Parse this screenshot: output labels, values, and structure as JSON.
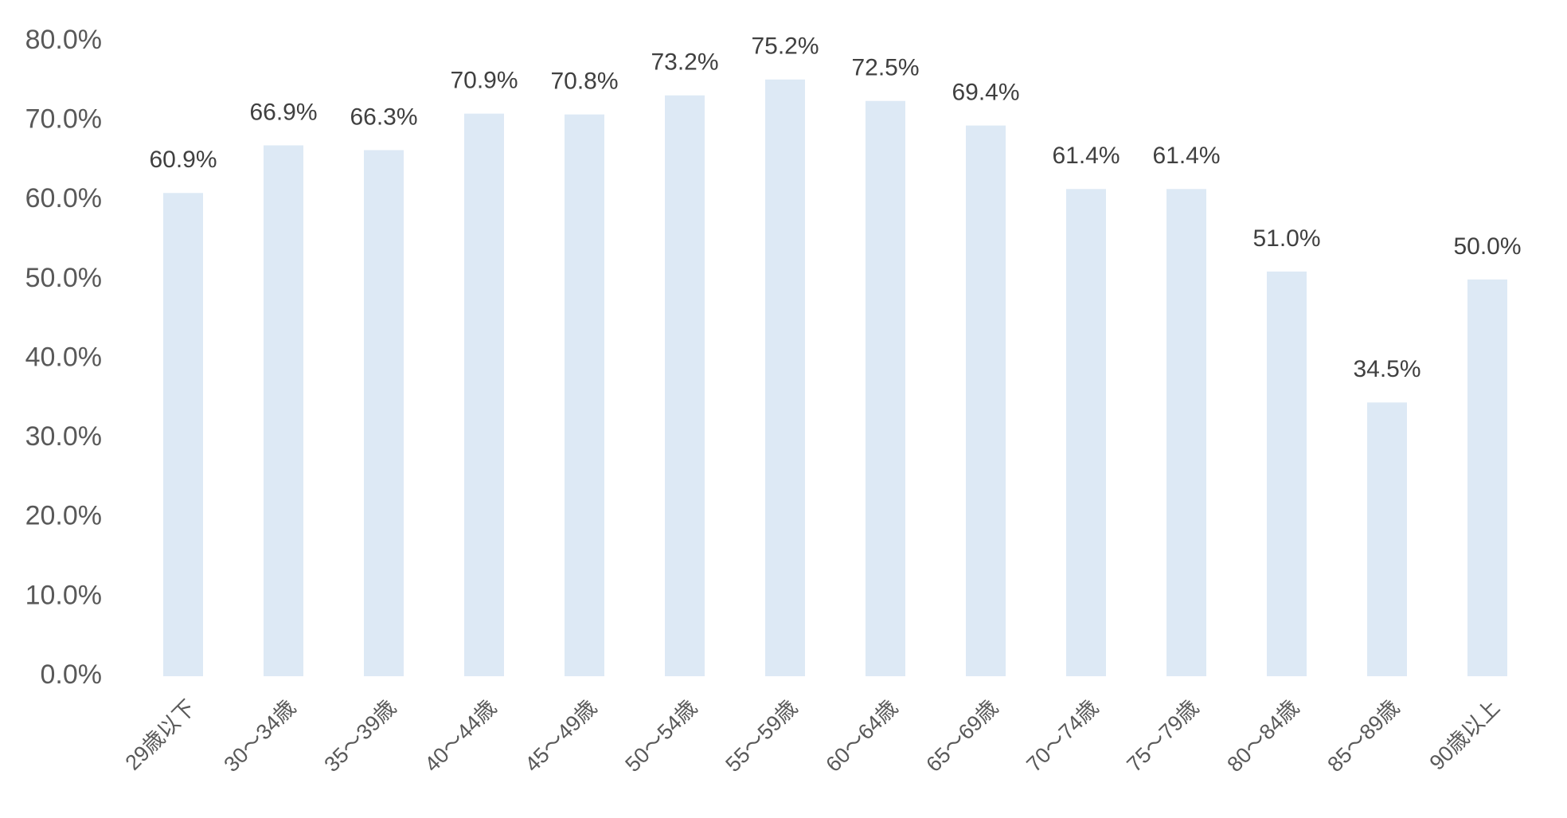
{
  "chart_data": {
    "type": "bar",
    "categories": [
      "29歳以下",
      "30～34歳",
      "35～39歳",
      "40～44歳",
      "45～49歳",
      "50～54歳",
      "55～59歳",
      "60～64歳",
      "65～69歳",
      "70～74歳",
      "75～79歳",
      "80～84歳",
      "85～89歳",
      "90歳以上"
    ],
    "values": [
      60.9,
      66.9,
      66.3,
      70.9,
      70.8,
      73.2,
      75.2,
      72.5,
      69.4,
      61.4,
      61.4,
      51.0,
      34.5,
      50.0
    ],
    "value_labels": [
      "60.9%",
      "66.9%",
      "66.3%",
      "70.9%",
      "70.8%",
      "73.2%",
      "75.2%",
      "72.5%",
      "69.4%",
      "61.4%",
      "61.4%",
      "51.0%",
      "34.5%",
      "50.0%"
    ],
    "color": "#dde9f5",
    "ylim": [
      0,
      80
    ],
    "yticks": [
      {
        "value": 0,
        "label": "0.0%"
      },
      {
        "value": 10,
        "label": "10.0%"
      },
      {
        "value": 20,
        "label": "20.0%"
      },
      {
        "value": 30,
        "label": "30.0%"
      },
      {
        "value": 40,
        "label": "40.0%"
      },
      {
        "value": 50,
        "label": "50.0%"
      },
      {
        "value": 60,
        "label": "60.0%"
      },
      {
        "value": 70,
        "label": "70.0%"
      },
      {
        "value": 80,
        "label": "80.0%"
      }
    ],
    "grid": false
  }
}
